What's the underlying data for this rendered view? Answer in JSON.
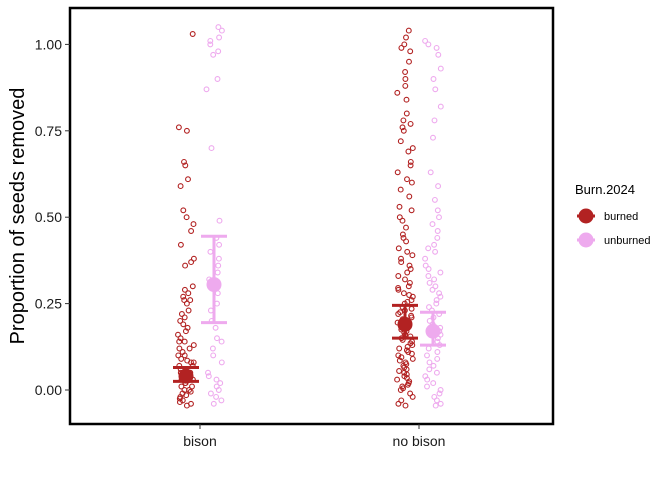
{
  "chart_data": {
    "type": "scatter",
    "ylabel": "Proportion of seeds removed",
    "xlabel": "",
    "categories": [
      "bison",
      "no bison"
    ],
    "yticks": [
      "0.00",
      "0.25",
      "0.50",
      "0.75",
      "1.00"
    ],
    "ylim": [
      -0.1,
      1.1
    ],
    "grid": false,
    "legend": {
      "title": "Burn.2024",
      "placement": "right",
      "entries": [
        {
          "label": "burned",
          "color": "#b22222"
        },
        {
          "label": "unburned",
          "color": "#eeaaee"
        }
      ]
    },
    "series": [
      {
        "name": "burned",
        "color": "#b22222",
        "summary": [
          {
            "category": "bison",
            "mean": 0.04,
            "lower": 0.025,
            "upper": 0.065
          },
          {
            "category": "no bison",
            "mean": 0.19,
            "lower": 0.15,
            "upper": 0.245
          }
        ],
        "points": {
          "bison": [
            1.03,
            0.76,
            0.75,
            0.66,
            0.65,
            0.61,
            0.59,
            0.52,
            0.5,
            0.48,
            0.46,
            0.42,
            0.38,
            0.37,
            0.36,
            0.3,
            0.29,
            0.28,
            0.27,
            0.26,
            0.25,
            0.23,
            0.21,
            0.2,
            0.19,
            0.17,
            0.16,
            0.15,
            0.14,
            0.13,
            0.12,
            0.11,
            0.1,
            0.09,
            0.085,
            0.08,
            0.07,
            0.06,
            0.05,
            0.04,
            0.03,
            0.02,
            0.01,
            0.0,
            -0.005,
            -0.01,
            -0.015,
            -0.02,
            -0.025,
            -0.03,
            -0.035,
            -0.04,
            -0.045,
            0.0,
            0.01,
            0.02,
            0.03,
            0.04,
            0.05,
            0.06,
            0.07,
            0.08,
            0.1,
            0.12,
            0.14,
            0.18,
            0.22,
            0.26
          ],
          "no bison": [
            1.04,
            1.02,
            1.0,
            0.99,
            0.98,
            0.95,
            0.92,
            0.9,
            0.88,
            0.86,
            0.84,
            0.8,
            0.78,
            0.77,
            0.76,
            0.75,
            0.72,
            0.7,
            0.69,
            0.66,
            0.65,
            0.63,
            0.61,
            0.6,
            0.58,
            0.56,
            0.53,
            0.52,
            0.5,
            0.49,
            0.47,
            0.45,
            0.44,
            0.43,
            0.41,
            0.4,
            0.39,
            0.38,
            0.37,
            0.36,
            0.35,
            0.34,
            0.33,
            0.32,
            0.31,
            0.3,
            0.29,
            0.28,
            0.27,
            0.26,
            0.25,
            0.24,
            0.23,
            0.22,
            0.21,
            0.2,
            0.19,
            0.18,
            0.17,
            0.16,
            0.15,
            0.14,
            0.13,
            0.12,
            0.11,
            0.1,
            0.09,
            0.08,
            0.07,
            0.06,
            0.05,
            0.04,
            0.03,
            0.02,
            0.01,
            0.0,
            -0.01,
            -0.02,
            -0.03,
            -0.04,
            -0.045,
            0.005,
            0.015,
            0.025,
            0.035,
            0.045,
            0.055,
            0.065,
            0.075,
            0.085,
            0.095,
            0.105,
            0.115,
            0.125,
            0.135,
            0.145,
            0.155,
            0.165,
            0.175,
            0.185,
            0.195,
            0.205,
            0.215,
            0.225,
            0.235,
            0.255,
            0.275,
            0.295
          ]
        }
      },
      {
        "name": "unburned",
        "color": "#eeaaee",
        "summary": [
          {
            "category": "bison",
            "mean": 0.305,
            "lower": 0.195,
            "upper": 0.445
          },
          {
            "category": "no bison",
            "mean": 0.17,
            "lower": 0.13,
            "upper": 0.225
          }
        ],
        "points": {
          "bison": [
            1.05,
            1.04,
            1.02,
            1.01,
            1.0,
            0.98,
            0.97,
            0.9,
            0.87,
            0.7,
            0.49,
            0.44,
            0.42,
            0.4,
            0.38,
            0.36,
            0.34,
            0.32,
            0.3,
            0.28,
            0.25,
            0.23,
            0.2,
            0.18,
            0.15,
            0.14,
            0.1,
            0.05,
            0.04,
            0.03,
            0.02,
            0.01,
            0.0,
            -0.01,
            -0.02,
            -0.03,
            -0.04,
            0.08,
            0.12
          ],
          "no bison": [
            1.01,
            1.0,
            0.99,
            0.97,
            0.93,
            0.9,
            0.87,
            0.82,
            0.78,
            0.73,
            0.63,
            0.59,
            0.55,
            0.52,
            0.5,
            0.48,
            0.46,
            0.44,
            0.42,
            0.41,
            0.4,
            0.38,
            0.36,
            0.35,
            0.34,
            0.33,
            0.32,
            0.31,
            0.3,
            0.29,
            0.28,
            0.27,
            0.26,
            0.25,
            0.24,
            0.23,
            0.22,
            0.21,
            0.2,
            0.19,
            0.18,
            0.17,
            0.16,
            0.15,
            0.14,
            0.13,
            0.12,
            0.11,
            0.1,
            0.09,
            0.08,
            0.07,
            0.06,
            0.05,
            0.04,
            0.03,
            0.02,
            0.01,
            0.0,
            -0.01,
            -0.02,
            -0.03,
            -0.04,
            -0.045
          ]
        }
      }
    ]
  }
}
